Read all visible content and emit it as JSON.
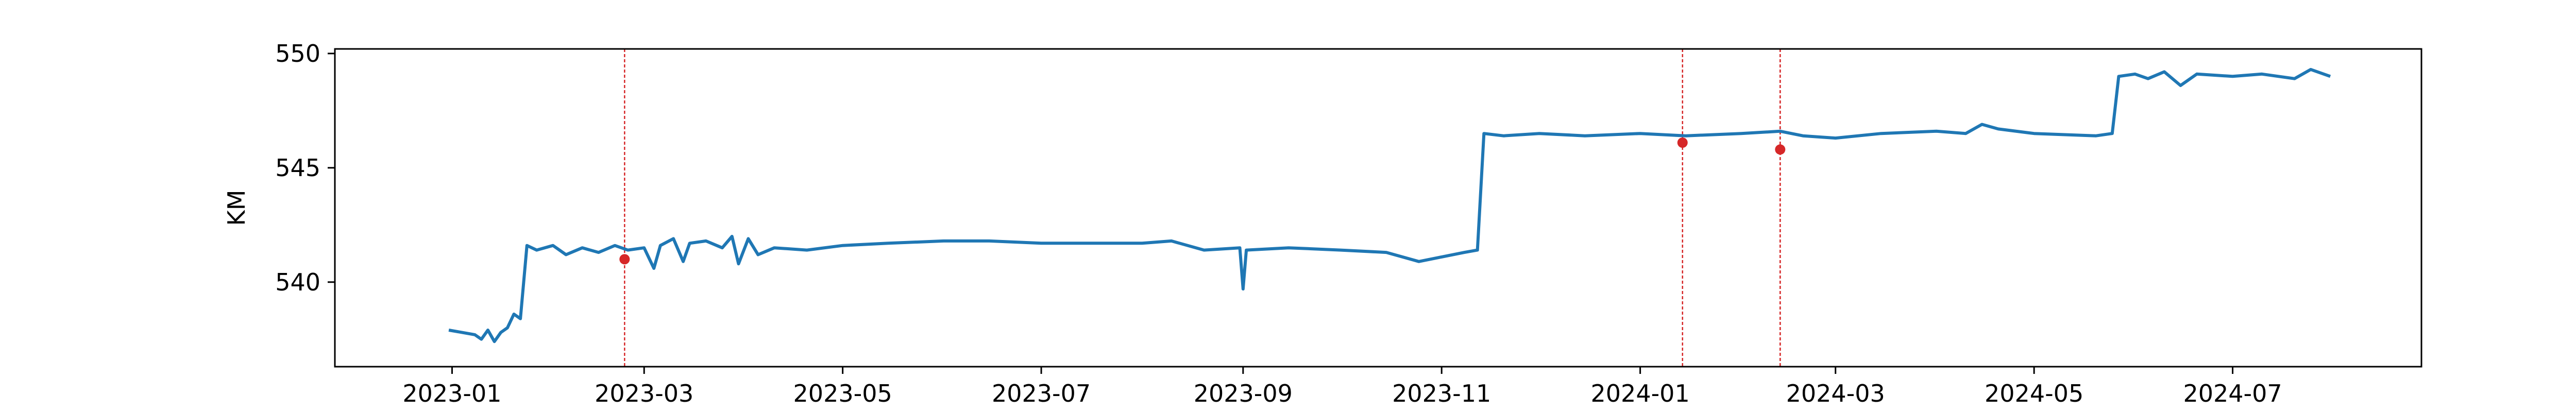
{
  "chart_data": {
    "type": "line",
    "title": "",
    "xlabel": "",
    "ylabel": "KM",
    "xlim": [
      "2022-11-26",
      "2024-08-28"
    ],
    "ylim": [
      536.3,
      550.2
    ],
    "y_ticks": [
      540,
      545,
      550
    ],
    "x_ticks": [
      "2023-01",
      "2023-03",
      "2023-05",
      "2023-07",
      "2023-09",
      "2023-11",
      "2024-01",
      "2024-03",
      "2024-05",
      "2024-07"
    ],
    "grid": false,
    "legend": "none",
    "series": [
      {
        "points": [
          [
            "2022-12-31",
            537.9
          ],
          [
            "2023-01-04",
            537.8
          ],
          [
            "2023-01-08",
            537.7
          ],
          [
            "2023-01-10",
            537.5
          ],
          [
            "2023-01-12",
            537.9
          ],
          [
            "2023-01-14",
            537.4
          ],
          [
            "2023-01-16",
            537.8
          ],
          [
            "2023-01-18",
            538.0
          ],
          [
            "2023-01-20",
            538.6
          ],
          [
            "2023-01-22",
            538.4
          ],
          [
            "2023-01-24",
            541.6
          ],
          [
            "2023-01-27",
            541.4
          ],
          [
            "2023-02-01",
            541.6
          ],
          [
            "2023-02-05",
            541.2
          ],
          [
            "2023-02-10",
            541.5
          ],
          [
            "2023-02-15",
            541.3
          ],
          [
            "2023-02-20",
            541.6
          ],
          [
            "2023-02-24",
            541.4
          ],
          [
            "2023-03-01",
            541.5
          ],
          [
            "2023-03-04",
            540.6
          ],
          [
            "2023-03-06",
            541.6
          ],
          [
            "2023-03-10",
            541.9
          ],
          [
            "2023-03-13",
            540.9
          ],
          [
            "2023-03-15",
            541.7
          ],
          [
            "2023-03-20",
            541.8
          ],
          [
            "2023-03-25",
            541.5
          ],
          [
            "2023-03-28",
            542.0
          ],
          [
            "2023-03-30",
            540.8
          ],
          [
            "2023-04-02",
            541.9
          ],
          [
            "2023-04-05",
            541.2
          ],
          [
            "2023-04-10",
            541.5
          ],
          [
            "2023-04-20",
            541.4
          ],
          [
            "2023-05-01",
            541.6
          ],
          [
            "2023-05-15",
            541.7
          ],
          [
            "2023-06-01",
            541.8
          ],
          [
            "2023-06-15",
            541.8
          ],
          [
            "2023-07-01",
            541.7
          ],
          [
            "2023-07-15",
            541.7
          ],
          [
            "2023-08-01",
            541.7
          ],
          [
            "2023-08-10",
            541.8
          ],
          [
            "2023-08-20",
            541.4
          ],
          [
            "2023-08-31",
            541.5
          ],
          [
            "2023-09-01",
            539.7
          ],
          [
            "2023-09-02",
            541.4
          ],
          [
            "2023-09-15",
            541.5
          ],
          [
            "2023-10-01",
            541.4
          ],
          [
            "2023-10-15",
            541.3
          ],
          [
            "2023-10-25",
            540.9
          ],
          [
            "2023-11-01",
            541.1
          ],
          [
            "2023-11-08",
            541.3
          ],
          [
            "2023-11-12",
            541.4
          ],
          [
            "2023-11-14",
            546.5
          ],
          [
            "2023-11-20",
            546.4
          ],
          [
            "2023-12-01",
            546.5
          ],
          [
            "2023-12-15",
            546.4
          ],
          [
            "2024-01-01",
            546.5
          ],
          [
            "2024-01-15",
            546.4
          ],
          [
            "2024-02-01",
            546.5
          ],
          [
            "2024-02-13",
            546.6
          ],
          [
            "2024-02-20",
            546.4
          ],
          [
            "2024-03-01",
            546.3
          ],
          [
            "2024-03-15",
            546.5
          ],
          [
            "2024-04-01",
            546.6
          ],
          [
            "2024-04-10",
            546.5
          ],
          [
            "2024-04-15",
            546.9
          ],
          [
            "2024-04-20",
            546.7
          ],
          [
            "2024-05-01",
            546.5
          ],
          [
            "2024-05-20",
            546.4
          ],
          [
            "2024-05-25",
            546.5
          ],
          [
            "2024-05-27",
            549.0
          ],
          [
            "2024-06-01",
            549.1
          ],
          [
            "2024-06-05",
            548.9
          ],
          [
            "2024-06-10",
            549.2
          ],
          [
            "2024-06-15",
            548.6
          ],
          [
            "2024-06-20",
            549.1
          ],
          [
            "2024-07-01",
            549.0
          ],
          [
            "2024-07-10",
            549.1
          ],
          [
            "2024-07-20",
            548.9
          ],
          [
            "2024-07-25",
            549.3
          ],
          [
            "2024-07-31",
            549.0
          ]
        ]
      }
    ],
    "markers": [
      {
        "date": "2023-02-23",
        "value": 541.0
      },
      {
        "date": "2024-01-14",
        "value": 546.1
      },
      {
        "date": "2024-02-13",
        "value": 545.8
      }
    ],
    "vlines": [
      "2023-02-23",
      "2024-01-14",
      "2024-02-13",
      "2024-02-13"
    ],
    "colors": {
      "line": "#1f77b4",
      "marker": "#d62728",
      "vline": "#d62728"
    }
  }
}
